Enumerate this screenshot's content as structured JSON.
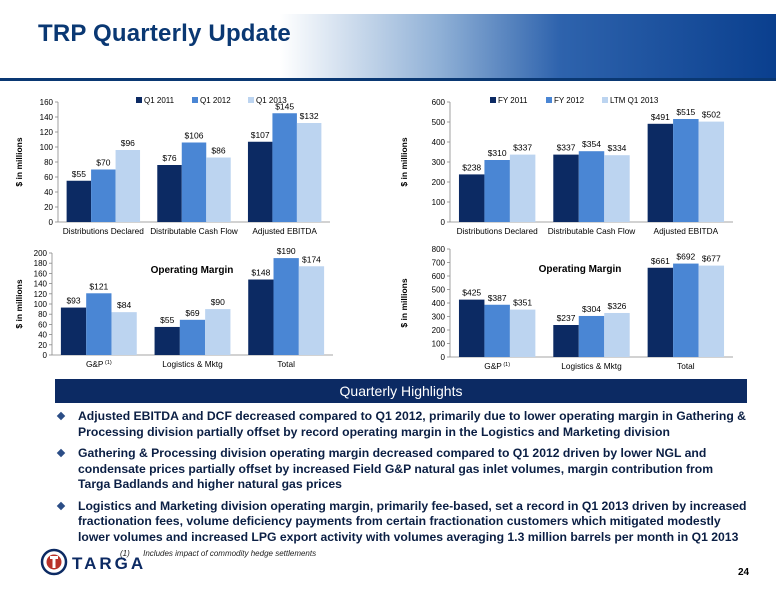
{
  "header": {
    "title": "TRP Quarterly Update"
  },
  "charts": [
    {
      "id": "tl",
      "type": "bar",
      "ylabel": "$ in millions",
      "ylim": [
        0,
        160
      ],
      "yticks": [
        0,
        20,
        40,
        60,
        80,
        100,
        120,
        140,
        160
      ],
      "categories": [
        "Distributions Declared",
        "Distributable Cash Flow",
        "Adjusted EBITDA"
      ],
      "series": [
        {
          "name": "Q1 2011",
          "values": [
            55,
            76,
            107
          ],
          "color": "#0c2a63"
        },
        {
          "name": "Q1 2012",
          "values": [
            70,
            106,
            145
          ],
          "color": "#4a86d4"
        },
        {
          "name": "Q1 2013",
          "values": [
            96,
            86,
            132
          ],
          "color": "#bcd4f0"
        }
      ],
      "labels": [
        [
          "$55",
          "$76",
          "$107"
        ],
        [
          "$70",
          "$106",
          "$145"
        ],
        [
          "$96",
          "$86",
          "$132"
        ]
      ],
      "legend": "top-center"
    },
    {
      "id": "tr",
      "type": "bar",
      "ylabel": "$ in millions",
      "ylim": [
        0,
        600
      ],
      "yticks": [
        0,
        100,
        200,
        300,
        400,
        500,
        600
      ],
      "categories": [
        "Distributions Declared",
        "Distributable Cash Flow",
        "Adjusted EBITDA"
      ],
      "series": [
        {
          "name": "FY 2011",
          "values": [
            238,
            337,
            491
          ],
          "color": "#0c2a63"
        },
        {
          "name": "FY 2012",
          "values": [
            310,
            354,
            515
          ],
          "color": "#4a86d4"
        },
        {
          "name": "LTM Q1 2013",
          "values": [
            337,
            334,
            502
          ],
          "color": "#bcd4f0"
        }
      ],
      "labels": [
        [
          "$238",
          "$337",
          "$491"
        ],
        [
          "$310",
          "$354",
          "$515"
        ],
        [
          "$337",
          "$334",
          "$502"
        ]
      ],
      "legend": "top-center"
    },
    {
      "id": "bl",
      "type": "bar",
      "title": "Operating Margin",
      "ylabel": "$ in millions",
      "ylim": [
        0,
        200
      ],
      "yticks": [
        0,
        20,
        40,
        60,
        80,
        100,
        120,
        140,
        160,
        180,
        200
      ],
      "categories": [
        "G&P",
        "Logistics & Mktg",
        "Total"
      ],
      "category_superscripts": [
        "(1)",
        "",
        ""
      ],
      "series": [
        {
          "name": "Q1 2011",
          "values": [
            93,
            55,
            148
          ],
          "color": "#0c2a63"
        },
        {
          "name": "Q1 2012",
          "values": [
            121,
            69,
            190
          ],
          "color": "#4a86d4"
        },
        {
          "name": "Q1 2013",
          "values": [
            84,
            90,
            174
          ],
          "color": "#bcd4f0"
        }
      ],
      "labels": [
        [
          "$93",
          "$55",
          "$148"
        ],
        [
          "$121",
          "$69",
          "$190"
        ],
        [
          "$84",
          "$90",
          "$174"
        ]
      ]
    },
    {
      "id": "br",
      "type": "bar",
      "title": "Operating Margin",
      "ylabel": "$ in millions",
      "ylim": [
        0,
        800
      ],
      "yticks": [
        0,
        100,
        200,
        300,
        400,
        500,
        600,
        700,
        800
      ],
      "categories": [
        "G&P",
        "Logistics & Mktg",
        "Total"
      ],
      "category_superscripts": [
        "(1)",
        "",
        ""
      ],
      "series": [
        {
          "name": "FY 2011",
          "values": [
            425,
            237,
            661
          ],
          "color": "#0c2a63"
        },
        {
          "name": "FY 2012",
          "values": [
            387,
            304,
            692
          ],
          "color": "#4a86d4"
        },
        {
          "name": "LTM Q1 2013",
          "values": [
            351,
            326,
            677
          ],
          "color": "#bcd4f0"
        }
      ],
      "labels": [
        [
          "$425",
          "$237",
          "$661"
        ],
        [
          "$387",
          "$304",
          "$692"
        ],
        [
          "$351",
          "$326",
          "$677"
        ]
      ]
    }
  ],
  "highlights": {
    "title": "Quarterly Highlights",
    "bullets": [
      "Adjusted EBITDA and DCF decreased compared to Q1 2012, primarily due to lower operating margin in Gathering & Processing division partially offset by record operating margin in the Logistics and Marketing division",
      "Gathering & Processing division operating margin decreased compared to Q1 2012 driven by lower NGL and condensate prices partially offset by increased Field G&P natural gas inlet volumes, margin contribution from Targa Badlands and higher natural gas prices",
      "Logistics and Marketing division operating margin, primarily fee-based, set a record in Q1 2013 driven by increased fractionation fees, volume deficiency payments from certain fractionation customers which mitigated modestly lower volumes and increased LPG export activity with volumes averaging 1.3 million barrels per month in Q1 2013"
    ]
  },
  "footnote": {
    "marker": "(1)",
    "text": "Includes impact of commodity hedge settlements"
  },
  "logo": {
    "text": "TARGA"
  },
  "page_number": "24"
}
